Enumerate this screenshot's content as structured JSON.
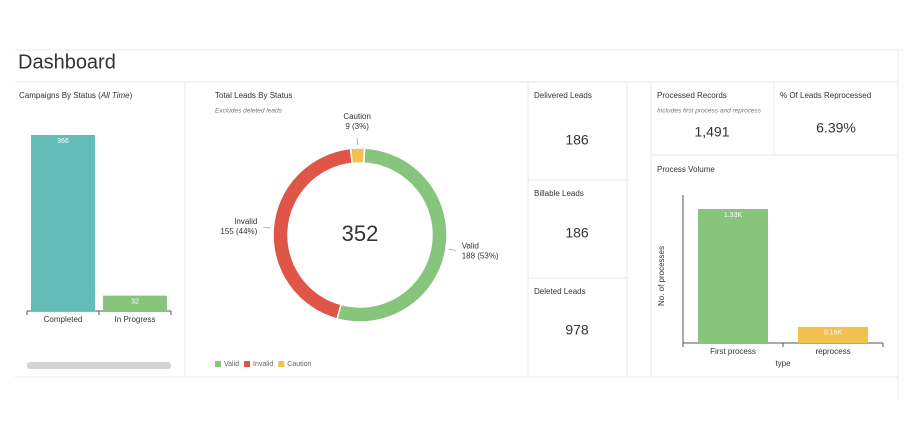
{
  "header": {
    "title": "Dashboard"
  },
  "chart_data": [
    {
      "type": "bar",
      "title_parts": [
        "Campaigns By Status (",
        "All Time",
        ")"
      ],
      "categories": [
        "Completed",
        "In Progress"
      ],
      "values": [
        366,
        32
      ],
      "colors": [
        "#64bcb9",
        "#87c47c"
      ]
    },
    {
      "type": "donut",
      "title": "Total Leads By Status",
      "subtitle": "Excludes deleted leads",
      "total": 352,
      "categories": [
        "Valid",
        "Invalid",
        "Caution"
      ],
      "values": [
        188,
        155,
        9
      ],
      "value_labels": [
        "188 (53%)",
        "155 (44%)",
        "9 (3%)"
      ],
      "colors": [
        "#87c47c",
        "#df5548",
        "#f2c04f"
      ],
      "legend": "bottom-left"
    },
    {
      "type": "bar",
      "title": "Process Volume",
      "xlabel": "type",
      "ylabel": "No. of processes",
      "categories": [
        "First process",
        "reprocess"
      ],
      "values": [
        1330,
        160
      ],
      "value_labels": [
        "1.33K",
        "0.16K"
      ],
      "colors": [
        "#87c47c",
        "#f2c04f"
      ]
    }
  ],
  "kpis": [
    {
      "title": "Delivered Leads",
      "value": 186
    },
    {
      "title": "Billable Leads",
      "value": 186
    },
    {
      "title": "Deleted Leads",
      "value": 978
    },
    {
      "title": "Processed Records",
      "subtitle": "Includes first process and reprocess",
      "value": {
        "value": 1491,
        "label": "1,491"
      }
    },
    {
      "title": "% Of Leads Reprocessed",
      "value": {
        "value": 6.39,
        "label": "6.39%"
      }
    }
  ]
}
